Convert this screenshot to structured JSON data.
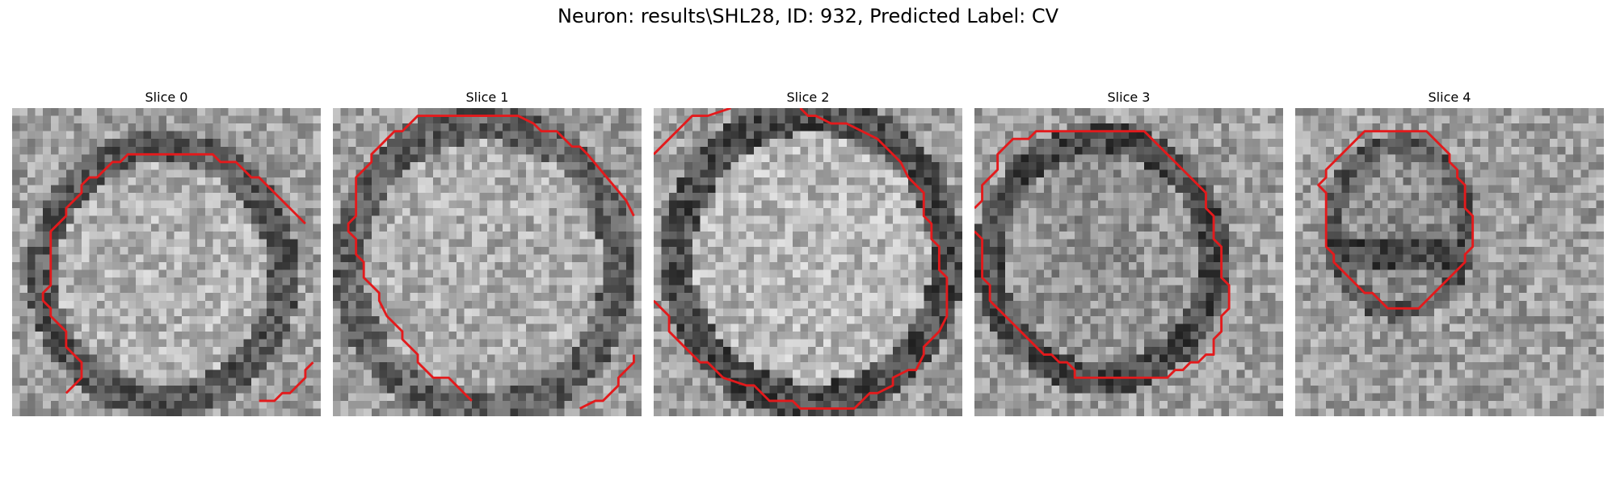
{
  "figure": {
    "title": "Neuron: results\\SHL28, ID: 932, Predicted Label: CV"
  },
  "colors": {
    "contour": "#e31a1c",
    "background": "#ffffff"
  },
  "slices": [
    {
      "title": "Slice 0",
      "contours": [
        [
          [
            7,
            37
          ],
          [
            9,
            35
          ],
          [
            9,
            33
          ],
          [
            7,
            31
          ],
          [
            7,
            29
          ],
          [
            5,
            27
          ],
          [
            5,
            26
          ],
          [
            4,
            25
          ],
          [
            4,
            24
          ],
          [
            5,
            23
          ],
          [
            5,
            16
          ],
          [
            7,
            14
          ],
          [
            7,
            13
          ],
          [
            9,
            11
          ],
          [
            9,
            10
          ],
          [
            10,
            9
          ],
          [
            11,
            9
          ],
          [
            13,
            7
          ],
          [
            14,
            7
          ],
          [
            15,
            6
          ],
          [
            26,
            6
          ],
          [
            27,
            7
          ],
          [
            29,
            7
          ],
          [
            30,
            8
          ],
          [
            31,
            9
          ],
          [
            32,
            9
          ],
          [
            38,
            15
          ]
        ],
        [
          [
            32,
            38
          ],
          [
            34,
            38
          ],
          [
            35,
            37
          ],
          [
            36,
            37
          ],
          [
            38,
            35
          ],
          [
            38,
            34
          ],
          [
            39,
            33
          ]
        ]
      ]
    },
    {
      "title": "Slice 1",
      "contours": [
        [
          [
            18,
            38
          ],
          [
            17,
            37
          ],
          [
            16,
            36
          ],
          [
            15,
            35
          ],
          [
            13,
            35
          ],
          [
            12,
            34
          ],
          [
            11,
            33
          ],
          [
            11,
            32
          ],
          [
            9,
            30
          ],
          [
            9,
            29
          ],
          [
            7,
            27
          ],
          [
            6,
            25
          ],
          [
            6,
            24
          ],
          [
            5,
            23
          ],
          [
            4,
            22
          ],
          [
            4,
            20
          ],
          [
            3,
            19
          ],
          [
            3,
            17
          ],
          [
            2,
            16
          ],
          [
            2,
            15
          ],
          [
            3,
            14
          ],
          [
            3,
            9
          ],
          [
            5,
            7
          ],
          [
            5,
            6
          ],
          [
            6,
            5
          ],
          [
            7,
            4
          ],
          [
            8,
            3
          ],
          [
            9,
            3
          ],
          [
            10,
            2
          ],
          [
            11,
            1
          ],
          [
            24,
            1
          ],
          [
            26,
            2
          ],
          [
            27,
            3
          ],
          [
            29,
            3
          ],
          [
            31,
            5
          ],
          [
            32,
            5
          ],
          [
            33,
            6
          ],
          [
            38,
            12
          ],
          [
            39,
            14
          ]
        ],
        [
          [
            32,
            39
          ],
          [
            34,
            38
          ],
          [
            35,
            38
          ],
          [
            37,
            36
          ],
          [
            37,
            35
          ],
          [
            39,
            33
          ],
          [
            39,
            32
          ]
        ]
      ]
    },
    {
      "title": "Slice 2",
      "contours": [
        [
          [
            0,
            25
          ],
          [
            2,
            27
          ],
          [
            2,
            29
          ],
          [
            4,
            31
          ],
          [
            6,
            33
          ],
          [
            7,
            33
          ],
          [
            9,
            35
          ],
          [
            12,
            36
          ],
          [
            13,
            36
          ],
          [
            15,
            38
          ],
          [
            18,
            38
          ],
          [
            19,
            39
          ],
          [
            26,
            39
          ],
          [
            28,
            37
          ],
          [
            29,
            37
          ],
          [
            31,
            36
          ],
          [
            31,
            35
          ],
          [
            33,
            34
          ],
          [
            34,
            34
          ],
          [
            35,
            32
          ],
          [
            35,
            31
          ],
          [
            36,
            30
          ],
          [
            37,
            29
          ],
          [
            38,
            27
          ],
          [
            38,
            22
          ],
          [
            37,
            21
          ],
          [
            37,
            18
          ],
          [
            36,
            17
          ],
          [
            36,
            15
          ],
          [
            35,
            14
          ],
          [
            35,
            11
          ],
          [
            34,
            10
          ],
          [
            33,
            9
          ],
          [
            32,
            7
          ],
          [
            30,
            5
          ],
          [
            29,
            4
          ],
          [
            27,
            3
          ],
          [
            25,
            2
          ],
          [
            23,
            2
          ],
          [
            21,
            1
          ],
          [
            20,
            1
          ],
          [
            19,
            0
          ]
        ],
        [
          [
            0,
            6
          ],
          [
            2,
            4
          ],
          [
            3,
            3
          ],
          [
            4,
            2
          ],
          [
            5,
            1
          ],
          [
            7,
            1
          ],
          [
            10,
            0
          ]
        ]
      ]
    },
    {
      "title": "Slice 3",
      "contours": [
        [
          [
            0,
            13
          ],
          [
            1,
            12
          ],
          [
            1,
            10
          ],
          [
            2,
            9
          ],
          [
            3,
            8
          ],
          [
            3,
            6
          ],
          [
            4,
            5
          ],
          [
            5,
            4
          ],
          [
            7,
            4
          ],
          [
            8,
            3
          ],
          [
            22,
            3
          ],
          [
            23,
            4
          ],
          [
            24,
            5
          ],
          [
            25,
            6
          ],
          [
            26,
            7
          ],
          [
            27,
            8
          ],
          [
            28,
            9
          ],
          [
            29,
            10
          ],
          [
            30,
            11
          ],
          [
            30,
            13
          ],
          [
            31,
            14
          ],
          [
            31,
            17
          ],
          [
            32,
            18
          ],
          [
            32,
            22
          ],
          [
            33,
            23
          ],
          [
            33,
            26
          ],
          [
            32,
            27
          ],
          [
            32,
            29
          ],
          [
            31,
            30
          ],
          [
            31,
            32
          ],
          [
            30,
            32
          ],
          [
            29,
            33
          ],
          [
            28,
            33
          ],
          [
            27,
            34
          ],
          [
            26,
            34
          ],
          [
            25,
            35
          ],
          [
            24,
            35
          ],
          [
            23,
            35
          ],
          [
            22,
            35
          ],
          [
            21,
            35
          ],
          [
            20,
            35
          ],
          [
            19,
            35
          ],
          [
            18,
            35
          ],
          [
            17,
            35
          ],
          [
            16,
            35
          ],
          [
            15,
            35
          ],
          [
            14,
            35
          ],
          [
            13,
            35
          ],
          [
            13,
            34
          ],
          [
            12,
            33
          ],
          [
            11,
            33
          ],
          [
            10,
            32
          ],
          [
            9,
            32
          ],
          [
            8,
            31
          ],
          [
            7,
            30
          ],
          [
            6,
            29
          ],
          [
            5,
            28
          ],
          [
            4,
            27
          ],
          [
            3,
            26
          ],
          [
            2,
            25
          ],
          [
            2,
            23
          ],
          [
            1,
            22
          ],
          [
            1,
            17
          ],
          [
            0,
            16
          ]
        ]
      ]
    },
    {
      "title": "Slice 4",
      "contours": [
        [
          [
            13,
            3
          ],
          [
            17,
            3
          ],
          [
            18,
            4
          ],
          [
            19,
            5
          ],
          [
            20,
            6
          ],
          [
            20,
            7
          ],
          [
            21,
            8
          ],
          [
            21,
            9
          ],
          [
            22,
            10
          ],
          [
            22,
            13
          ],
          [
            23,
            14
          ],
          [
            23,
            18
          ],
          [
            22,
            19
          ],
          [
            22,
            20
          ],
          [
            21,
            21
          ],
          [
            20,
            22
          ],
          [
            19,
            23
          ],
          [
            18,
            24
          ],
          [
            17,
            25
          ],
          [
            16,
            26
          ],
          [
            15,
            26
          ],
          [
            14,
            26
          ],
          [
            13,
            26
          ],
          [
            12,
            26
          ],
          [
            11,
            25
          ],
          [
            10,
            24
          ],
          [
            9,
            24
          ],
          [
            8,
            23
          ],
          [
            7,
            22
          ],
          [
            6,
            21
          ],
          [
            5,
            20
          ],
          [
            5,
            19
          ],
          [
            4,
            18
          ],
          [
            4,
            11
          ],
          [
            3,
            10
          ],
          [
            4,
            9
          ],
          [
            4,
            8
          ],
          [
            5,
            7
          ],
          [
            6,
            6
          ],
          [
            7,
            5
          ],
          [
            8,
            4
          ],
          [
            9,
            3
          ],
          [
            10,
            3
          ],
          [
            12,
            3
          ],
          [
            13,
            3
          ]
        ]
      ]
    }
  ]
}
